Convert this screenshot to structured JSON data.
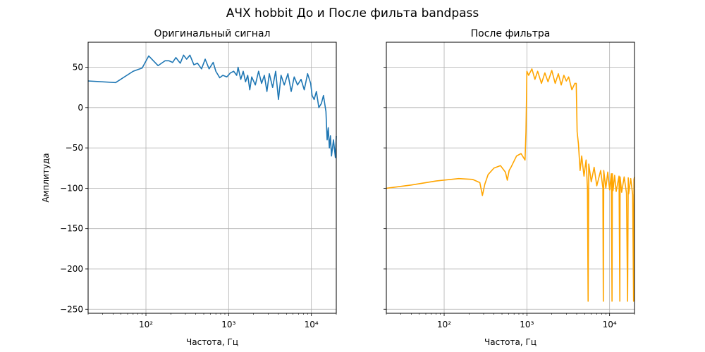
{
  "figure": {
    "title": "АЧХ hobbit До и После фильта bandpass"
  },
  "chart_data": [
    {
      "type": "line",
      "title": "Оригинальный сигнал",
      "xlabel": "Частота, Гц",
      "ylabel": "Амплитуда",
      "xscale": "log",
      "xlim": [
        20,
        20000
      ],
      "ylim": [
        -255,
        81
      ],
      "xticks": [
        100,
        1000,
        10000
      ],
      "xtick_labels": [
        "10²",
        "10³",
        "10⁴"
      ],
      "yticks": [
        50,
        0,
        -50,
        -100,
        -150,
        -200,
        -250
      ],
      "grid": true,
      "series": [
        {
          "color": "#1f77b4",
          "x": [
            20,
            43,
            70,
            90,
            108,
            140,
            170,
            190,
            210,
            230,
            260,
            285,
            310,
            340,
            380,
            420,
            470,
            520,
            580,
            650,
            700,
            780,
            850,
            950,
            1050,
            1150,
            1250,
            1300,
            1400,
            1500,
            1600,
            1700,
            1800,
            1900,
            2100,
            2300,
            2500,
            2700,
            2900,
            3100,
            3400,
            3700,
            4000,
            4300,
            4700,
            5200,
            5700,
            6200,
            6800,
            7500,
            8200,
            9000,
            9800,
            10200,
            10800,
            11500,
            12300,
            13200,
            14000,
            15000,
            15500,
            16000,
            16500,
            17000,
            17500,
            18500,
            19500,
            20000
          ],
          "y": [
            33,
            31,
            45,
            49,
            64,
            52,
            58,
            58,
            56,
            62,
            55,
            65,
            60,
            65,
            53,
            55,
            48,
            60,
            48,
            56,
            45,
            37,
            40,
            38,
            43,
            45,
            40,
            50,
            35,
            45,
            32,
            40,
            22,
            38,
            28,
            45,
            30,
            40,
            20,
            42,
            25,
            45,
            10,
            40,
            28,
            42,
            20,
            38,
            28,
            35,
            22,
            42,
            30,
            15,
            10,
            20,
            0,
            5,
            15,
            -5,
            -40,
            -25,
            -50,
            -35,
            -60,
            -40,
            -62,
            -35
          ]
        }
      ]
    },
    {
      "type": "line",
      "title": "После фильтра",
      "xlabel": "Частота, Гц",
      "ylabel": "",
      "xscale": "log",
      "xlim": [
        20,
        20000
      ],
      "ylim": [
        -255,
        81
      ],
      "xticks": [
        100,
        1000,
        10000
      ],
      "xtick_labels": [
        "10²",
        "10³",
        "10⁴"
      ],
      "yticks": [
        50,
        0,
        -50,
        -100,
        -150,
        -200,
        -250
      ],
      "grid": true,
      "series": [
        {
          "color": "#ffa500",
          "x": [
            20,
            40,
            80,
            150,
            220,
            270,
            290,
            310,
            340,
            400,
            480,
            550,
            580,
            610,
            650,
            750,
            850,
            950,
            975,
            990,
            1000,
            1050,
            1150,
            1250,
            1350,
            1500,
            1650,
            1800,
            2000,
            2200,
            2400,
            2600,
            2800,
            3000,
            3200,
            3500,
            3800,
            3950,
            4000,
            4050,
            4200,
            4400,
            4600,
            4900,
            5200,
            5400,
            5500,
            5600,
            6000,
            6500,
            7000,
            7800,
            8300,
            8400,
            8500,
            9000,
            9500,
            10000,
            10500,
            10700,
            10800,
            11000,
            11500,
            12000,
            13000,
            13300,
            13400,
            14000,
            15000,
            16000,
            16500,
            16800,
            17000,
            18000,
            19000,
            19500,
            19700,
            20000
          ],
          "y": [
            -100,
            -96,
            -91,
            -88,
            -89,
            -93,
            -109,
            -95,
            -83,
            -75,
            -72,
            -80,
            -90,
            -78,
            -73,
            -60,
            -57,
            -65,
            -30,
            10,
            45,
            40,
            48,
            35,
            45,
            30,
            43,
            32,
            46,
            30,
            42,
            28,
            40,
            33,
            38,
            22,
            30,
            30,
            0,
            -30,
            -45,
            -78,
            -60,
            -85,
            -65,
            -100,
            -240,
            -70,
            -92,
            -74,
            -97,
            -78,
            -100,
            -240,
            -78,
            -100,
            -80,
            -102,
            -82,
            -240,
            -82,
            -103,
            -84,
            -104,
            -85,
            -240,
            -86,
            -105,
            -86,
            -106,
            -240,
            -87,
            -107,
            -88,
            -108,
            -240,
            -89,
            -86
          ]
        }
      ]
    }
  ]
}
